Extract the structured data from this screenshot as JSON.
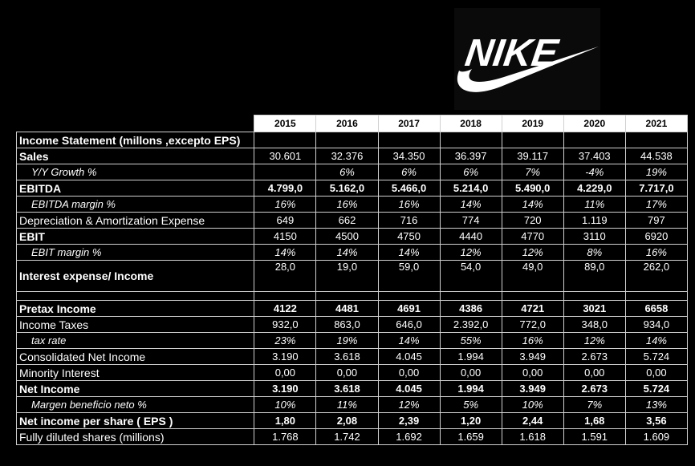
{
  "logo": {
    "text": "NIKE"
  },
  "years": [
    "2015",
    "2016",
    "2017",
    "2018",
    "2019",
    "2020",
    "2021"
  ],
  "title": "Income Statement (millons ,excepto EPS)",
  "rows": [
    {
      "label": "Sales",
      "style": "bold-label",
      "values": [
        "30.601",
        "32.376",
        "34.350",
        "36.397",
        "39.117",
        "37.403",
        "44.538"
      ]
    },
    {
      "label": "Y/Y Growth %",
      "style": "ital",
      "values": [
        "",
        "6%",
        "6%",
        "6%",
        "7%",
        "-4%",
        "19%"
      ]
    },
    {
      "label": "EBITDA",
      "style": "bold",
      "values": [
        "4.799,0",
        "5.162,0",
        "5.466,0",
        "5.214,0",
        "5.490,0",
        "4.229,0",
        "7.717,0"
      ]
    },
    {
      "label": "EBITDA margin %",
      "style": "ital",
      "values": [
        "16%",
        "16%",
        "16%",
        "14%",
        "14%",
        "11%",
        "17%"
      ]
    },
    {
      "label": "Depreciation & Amortization Expense",
      "style": "plain",
      "values": [
        "649",
        "662",
        "716",
        "774",
        "720",
        "1.119",
        "797"
      ]
    },
    {
      "label": "EBIT",
      "style": "bold-label",
      "values": [
        "4150",
        "4500",
        "4750",
        "4440",
        "4770",
        "3110",
        "6920"
      ]
    },
    {
      "label": "EBIT margin %",
      "style": "ital",
      "values": [
        "14%",
        "14%",
        "14%",
        "12%",
        "12%",
        "8%",
        "16%"
      ]
    },
    {
      "label": "Interest expense/ Income",
      "style": "tall",
      "values": [
        "28,0",
        "19,0",
        "59,0",
        "54,0",
        "49,0",
        "89,0",
        "262,0"
      ]
    },
    {
      "label": "Pretax Income",
      "style": "bold",
      "values": [
        "4122",
        "4481",
        "4691",
        "4386",
        "4721",
        "3021",
        "6658"
      ]
    },
    {
      "label": "Income Taxes",
      "style": "plain",
      "values": [
        "932,0",
        "863,0",
        "646,0",
        "2.392,0",
        "772,0",
        "348,0",
        "934,0"
      ]
    },
    {
      "label": "tax rate",
      "style": "ital",
      "values": [
        "23%",
        "19%",
        "14%",
        "55%",
        "16%",
        "12%",
        "14%"
      ]
    },
    {
      "label": "Consolidated Net Income",
      "style": "plain",
      "values": [
        "3.190",
        "3.618",
        "4.045",
        "1.994",
        "3.949",
        "2.673",
        "5.724"
      ]
    },
    {
      "label": "Minority Interest",
      "style": "plain",
      "values": [
        "0,00",
        "0,00",
        "0,00",
        "0,00",
        "0,00",
        "0,00",
        "0,00"
      ]
    },
    {
      "label": "Net Income",
      "style": "bold",
      "values": [
        "3.190",
        "3.618",
        "4.045",
        "1.994",
        "3.949",
        "2.673",
        "5.724"
      ]
    },
    {
      "label": "Margen beneficio neto %",
      "style": "ital",
      "values": [
        "10%",
        "11%",
        "12%",
        "5%",
        "10%",
        "7%",
        "13%"
      ]
    },
    {
      "label": "Net income per share ( EPS )",
      "style": "bold",
      "values": [
        "1,80",
        "2,08",
        "2,39",
        "1,20",
        "2,44",
        "1,68",
        "3,56"
      ]
    },
    {
      "label": "Fully diluted shares  (millions)",
      "style": "plain",
      "values": [
        "1.768",
        "1.742",
        "1.692",
        "1.659",
        "1.618",
        "1.591",
        "1.609"
      ]
    }
  ]
}
